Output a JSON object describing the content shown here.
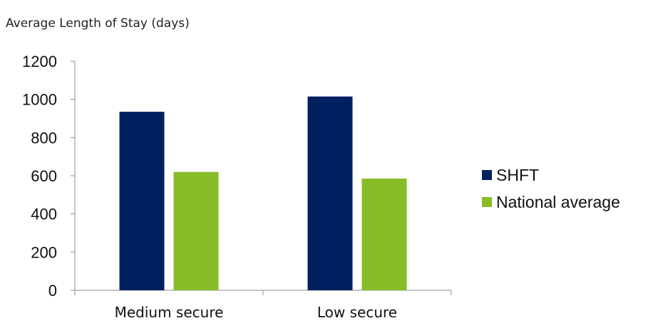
{
  "chart_data": {
    "type": "bar",
    "title": "Average Length of Stay (days)",
    "categories": [
      "Medium secure",
      "Low secure"
    ],
    "series": [
      {
        "name": "SHFT",
        "values": [
          935,
          1015
        ],
        "color": "#002060"
      },
      {
        "name": "National average",
        "values": [
          620,
          585
        ],
        "color": "#86bc25"
      }
    ],
    "ylim": [
      0,
      1200
    ],
    "yticks": [
      0,
      200,
      400,
      600,
      800,
      1000,
      1200
    ],
    "ytick_labels": [
      "0",
      "200",
      "400",
      "600",
      "800",
      "1000",
      "1200"
    ],
    "grid": false,
    "legend_position": "right"
  }
}
